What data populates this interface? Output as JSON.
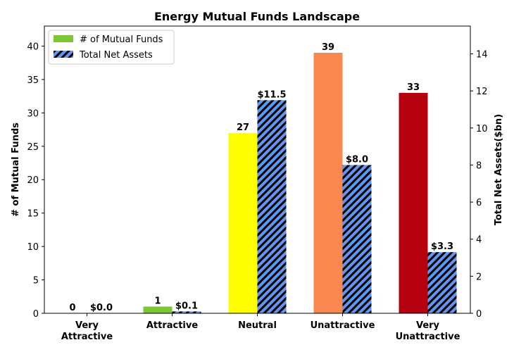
{
  "chart_data": {
    "type": "bar",
    "title": "Energy Mutual Funds Landscape",
    "categories": [
      "Very\nAttractive",
      "Attractive",
      "Neutral",
      "Unattractive",
      "Very\nUnattractive"
    ],
    "ylabel_left": "# of Mutual Funds",
    "ylabel_right": "Total Net Assets($bn)",
    "ylim_left": [
      0,
      43
    ],
    "ylim_right": [
      0,
      15.5
    ],
    "yticks_left": [
      0,
      5,
      10,
      15,
      20,
      25,
      30,
      35,
      40
    ],
    "yticks_right": [
      0,
      2,
      4,
      6,
      8,
      10,
      12,
      14
    ],
    "legend_position": "top-left",
    "series": [
      {
        "name": "# of Mutual Funds",
        "axis": "left",
        "values": [
          0,
          1,
          27,
          39,
          33
        ],
        "labels": [
          "0",
          "1",
          "27",
          "39",
          "33"
        ],
        "colors": [
          "#7dc832",
          "#7dc832",
          "#ffff00",
          "#f98850",
          "#b50010"
        ],
        "legend_color": "#7dc832"
      },
      {
        "name": "Total Net Assets",
        "axis": "right",
        "values": [
          0.0,
          0.1,
          11.5,
          8.0,
          3.3
        ],
        "labels": [
          "$0.0",
          "$0.1",
          "$11.5",
          "$8.0",
          "$3.3"
        ],
        "color": "#6495ed",
        "hatch_color": "#000000",
        "pattern": "diagonal-hatch"
      }
    ]
  }
}
